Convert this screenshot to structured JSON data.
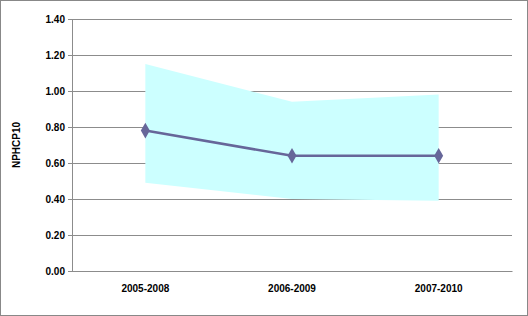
{
  "chart_data": {
    "type": "line",
    "y_label": "NPHCP10",
    "categories": [
      "2005-2008",
      "2006-2009",
      "2007-2010"
    ],
    "series": [
      {
        "type": "area",
        "color": "#ccffff",
        "lower": [
          0.49,
          0.4,
          0.39
        ],
        "upper": [
          1.15,
          0.94,
          0.98
        ]
      },
      {
        "type": "line",
        "color": "#666699",
        "marker": "diamond",
        "values": [
          0.78,
          0.64,
          0.64
        ]
      }
    ],
    "ylim": [
      0,
      1.4
    ],
    "yticks": [
      {
        "value": 0,
        "label": "0.00"
      },
      {
        "value": 0.2,
        "label": "0.20"
      },
      {
        "value": 0.4,
        "label": "0.40"
      },
      {
        "value": 0.6,
        "label": "0.60"
      },
      {
        "value": 0.8,
        "label": "0.80"
      },
      {
        "value": 1.0,
        "label": "1.00"
      },
      {
        "value": 1.2,
        "label": "1.20"
      },
      {
        "value": 1.4,
        "label": "1.40"
      }
    ],
    "grid": true
  }
}
